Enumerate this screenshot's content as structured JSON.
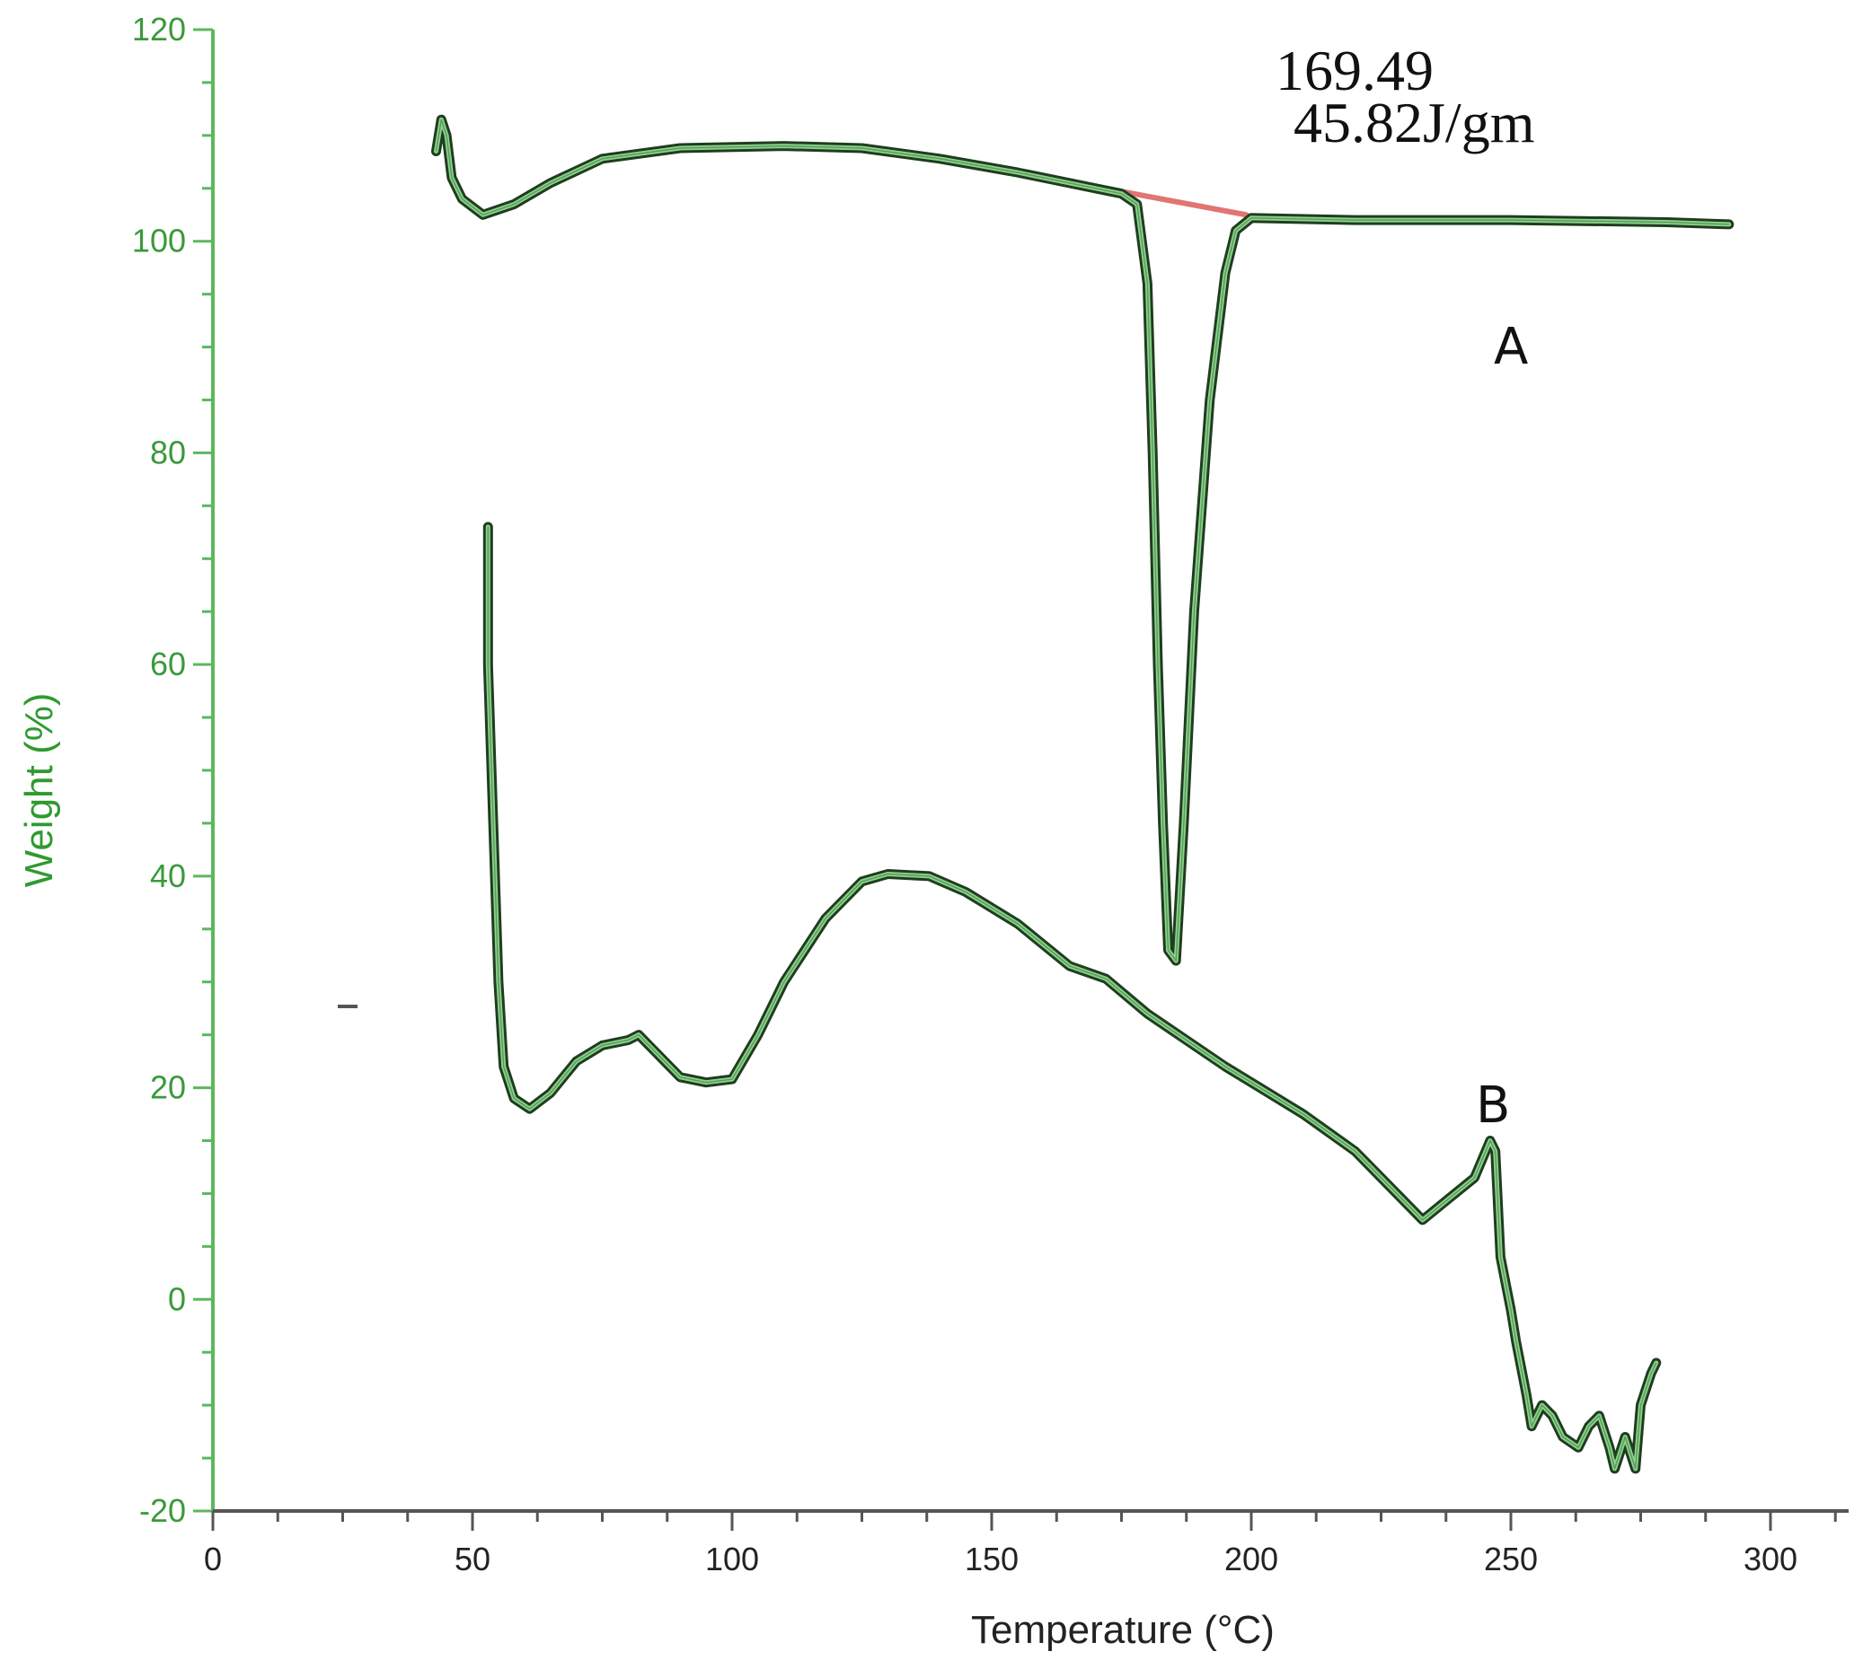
{
  "chart_data": {
    "type": "line",
    "title": "",
    "xlabel": "Temperature (°C)",
    "ylabel": "Weight (%)",
    "xlim": [
      0,
      312.5
    ],
    "ylim": [
      -20,
      120
    ],
    "x_ticks": [
      0,
      50,
      100,
      150,
      200,
      250,
      300
    ],
    "y_ticks": [
      -20,
      0,
      20,
      40,
      60,
      80,
      100,
      120
    ],
    "x_minor_step": 12.5,
    "y_minor_step": 5,
    "grid": false,
    "legend": null,
    "annotations": [
      {
        "text": "169.49",
        "position": "top-right, above curve A endotherm"
      },
      {
        "text": "45.82J/gm",
        "position": "below 169.49"
      },
      {
        "text": "A",
        "target": "curve A",
        "x": 250,
        "y": 91
      },
      {
        "text": "B",
        "target": "curve B",
        "x": 245,
        "y": 19.5
      }
    ],
    "series": [
      {
        "name": "A",
        "color": "#2e7d32",
        "fill_color": "#8fd18f",
        "points": [
          [
            43,
            108.5
          ],
          [
            44,
            111.5
          ],
          [
            45,
            110
          ],
          [
            46,
            106
          ],
          [
            48,
            104
          ],
          [
            52,
            102.5
          ],
          [
            58,
            103.5
          ],
          [
            65,
            105.5
          ],
          [
            75,
            107.8
          ],
          [
            90,
            108.8
          ],
          [
            110,
            109
          ],
          [
            125,
            108.8
          ],
          [
            140,
            107.8
          ],
          [
            155,
            106.5
          ],
          [
            170,
            105
          ],
          [
            175,
            104.5
          ],
          [
            178,
            103.5
          ],
          [
            180,
            96
          ],
          [
            181,
            80
          ],
          [
            182,
            60
          ],
          [
            183,
            45
          ],
          [
            184,
            33
          ],
          [
            185.5,
            32
          ],
          [
            187,
            45
          ],
          [
            189,
            65
          ],
          [
            192,
            85
          ],
          [
            195,
            97
          ],
          [
            197,
            101
          ],
          [
            200,
            102.2
          ],
          [
            220,
            102
          ],
          [
            250,
            102
          ],
          [
            280,
            101.8
          ],
          [
            292,
            101.6
          ]
        ]
      },
      {
        "name": "B",
        "color": "#2e7d32",
        "fill_color": "#8fd18f",
        "points": [
          [
            53,
            73
          ],
          [
            53,
            60
          ],
          [
            54,
            45
          ],
          [
            55,
            30
          ],
          [
            56,
            22
          ],
          [
            58,
            19
          ],
          [
            61,
            18
          ],
          [
            65,
            19.5
          ],
          [
            70,
            22.5
          ],
          [
            75,
            24
          ],
          [
            80,
            24.5
          ],
          [
            82,
            25
          ],
          [
            85,
            23.5
          ],
          [
            90,
            21
          ],
          [
            95,
            20.5
          ],
          [
            100,
            20.8
          ],
          [
            105,
            25
          ],
          [
            110,
            30
          ],
          [
            118,
            36
          ],
          [
            125,
            39.5
          ],
          [
            130,
            40.2
          ],
          [
            138,
            40
          ],
          [
            145,
            38.5
          ],
          [
            155,
            35.5
          ],
          [
            165,
            31.5
          ],
          [
            172,
            30.3
          ],
          [
            180,
            27
          ],
          [
            195,
            22
          ],
          [
            210,
            17.5
          ],
          [
            220,
            14
          ],
          [
            228,
            10
          ],
          [
            233,
            7.5
          ],
          [
            238,
            9.5
          ],
          [
            243,
            11.5
          ],
          [
            246,
            15
          ],
          [
            247,
            14
          ],
          [
            248,
            4
          ],
          [
            250,
            -1
          ],
          [
            251,
            -4
          ],
          [
            253,
            -9
          ],
          [
            254,
            -12
          ],
          [
            256,
            -10
          ],
          [
            258,
            -11
          ],
          [
            260,
            -13
          ],
          [
            263,
            -14
          ],
          [
            265,
            -12
          ],
          [
            267,
            -11
          ],
          [
            269,
            -14
          ],
          [
            270,
            -16
          ],
          [
            272,
            -13
          ],
          [
            274,
            -16
          ],
          [
            275,
            -10
          ],
          [
            277,
            -7
          ],
          [
            278,
            -6
          ]
        ]
      }
    ],
    "baseline": {
      "name": "integration baseline",
      "color": "#d9534f",
      "from": [
        174,
        104.8
      ],
      "to": [
        199,
        102.5
      ]
    }
  },
  "labels": {
    "xlabel": "Temperature (°C)",
    "ylabel": "Weight (%)",
    "annotation_peak": "169.49",
    "annotation_enthalpy": "45.82J/gm",
    "curve_a": "A",
    "curve_b": "B"
  },
  "colors": {
    "y_axis": "#5cb85c",
    "x_axis": "#555555",
    "curve_outline": "#1f3d1f",
    "curve_fill": "#8fd18f",
    "baseline": "#d9534f"
  }
}
